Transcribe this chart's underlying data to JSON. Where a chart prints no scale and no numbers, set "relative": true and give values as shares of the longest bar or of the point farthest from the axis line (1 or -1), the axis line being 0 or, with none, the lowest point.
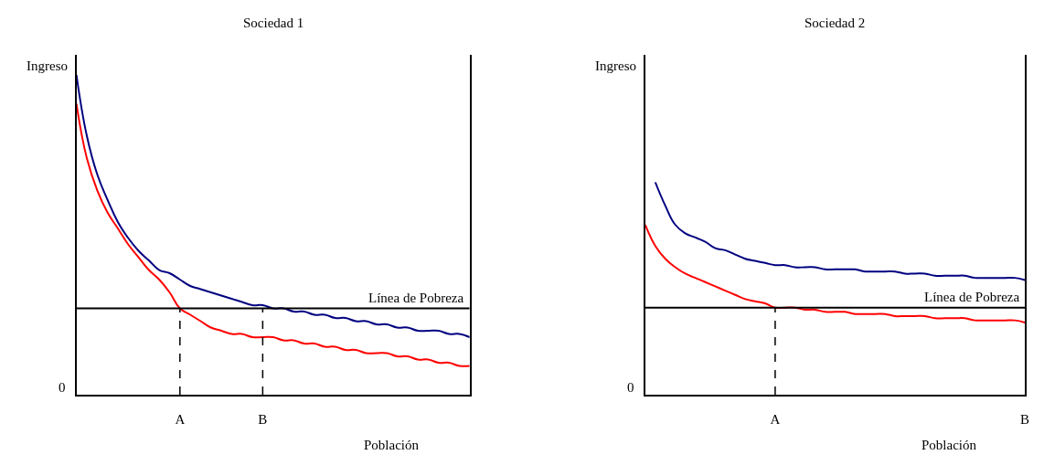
{
  "chart_data": [
    {
      "type": "line",
      "title": "Sociedad 1",
      "xlabel": "Población",
      "ylabel": "Ingreso",
      "relative": true,
      "annotations": [
        "0"
      ],
      "categories": [
        null,
        null,
        null,
        null,
        null,
        null,
        null,
        null,
        null,
        null,
        "A",
        null,
        null,
        null,
        null,
        null,
        null,
        null,
        "B",
        null,
        null,
        null,
        null,
        null,
        null,
        null,
        null,
        null,
        null,
        null,
        null,
        null,
        null,
        null,
        null,
        null,
        null,
        null,
        null
      ],
      "series": [
        {
          "color": "#000080",
          "values": [
            1.0,
            0.81,
            0.69,
            0.61,
            0.54,
            0.49,
            0.45,
            0.42,
            0.39,
            0.38,
            0.36,
            0.34,
            0.33,
            0.32,
            0.31,
            0.3,
            0.29,
            0.28,
            0.28,
            0.27,
            0.27,
            0.26,
            0.26,
            0.25,
            0.25,
            0.24,
            0.24,
            0.23,
            0.23,
            0.22,
            0.22,
            0.21,
            0.21,
            0.2,
            0.2,
            0.2,
            0.19,
            0.19,
            0.18
          ]
        },
        {
          "color": "#ff0000",
          "values": [
            0.91,
            0.74,
            0.64,
            0.57,
            0.52,
            0.47,
            0.43,
            0.39,
            0.36,
            0.32,
            0.27,
            0.25,
            0.23,
            0.21,
            0.2,
            0.19,
            0.19,
            0.18,
            0.18,
            0.18,
            0.17,
            0.17,
            0.16,
            0.16,
            0.15,
            0.15,
            0.14,
            0.14,
            0.13,
            0.13,
            0.13,
            0.12,
            0.12,
            0.11,
            0.11,
            0.1,
            0.1,
            0.09,
            0.09
          ]
        }
      ],
      "ref_lines": [
        {
          "axis": "y",
          "value": 0.27,
          "label": "Línea de Pobreza",
          "color": "#000000",
          "line_style": "solid"
        },
        {
          "axis": "x",
          "value": "A",
          "color": "#000000",
          "line_style": "dashed"
        },
        {
          "axis": "x",
          "value": "B",
          "color": "#000000",
          "line_style": "dashed"
        }
      ],
      "marker": "none",
      "line_style": "solid"
    },
    {
      "type": "line",
      "title": "Sociedad 2",
      "xlabel": "Población",
      "ylabel": "Ingreso",
      "relative": true,
      "annotations": [
        "0"
      ],
      "categories": [
        null,
        null,
        null,
        null,
        null,
        null,
        null,
        null,
        null,
        null,
        null,
        null,
        null,
        "A",
        null,
        null,
        null,
        null,
        null,
        null,
        null,
        null,
        null,
        null,
        null,
        null,
        null,
        null,
        null,
        null,
        null,
        null,
        null,
        null,
        null,
        null,
        null,
        null,
        "B"
      ],
      "series": [
        {
          "color": "#000080",
          "values": [
            null,
            1.0,
            0.89,
            0.8,
            0.76,
            0.74,
            0.72,
            0.69,
            0.68,
            0.66,
            0.64,
            0.63,
            0.62,
            0.61,
            0.61,
            0.6,
            0.6,
            0.6,
            0.59,
            0.59,
            0.59,
            0.59,
            0.58,
            0.58,
            0.58,
            0.58,
            0.57,
            0.57,
            0.57,
            0.56,
            0.56,
            0.56,
            0.56,
            0.55,
            0.55,
            0.55,
            0.55,
            0.55,
            0.54
          ]
        },
        {
          "color": "#ff0000",
          "values": [
            0.8,
            0.7,
            0.64,
            0.6,
            0.57,
            0.55,
            0.53,
            0.51,
            0.49,
            0.47,
            0.45,
            0.44,
            0.43,
            0.41,
            0.41,
            0.41,
            0.4,
            0.4,
            0.39,
            0.39,
            0.39,
            0.38,
            0.38,
            0.38,
            0.38,
            0.37,
            0.37,
            0.37,
            0.37,
            0.36,
            0.36,
            0.36,
            0.36,
            0.35,
            0.35,
            0.35,
            0.35,
            0.35,
            0.34
          ]
        }
      ],
      "ref_lines": [
        {
          "axis": "y",
          "value": 0.41,
          "label": "Línea de Pobreza",
          "color": "#000000",
          "line_style": "solid"
        },
        {
          "axis": "x",
          "value": "A",
          "color": "#000000",
          "line_style": "dashed"
        }
      ],
      "marker": "none",
      "line_style": "solid"
    }
  ]
}
